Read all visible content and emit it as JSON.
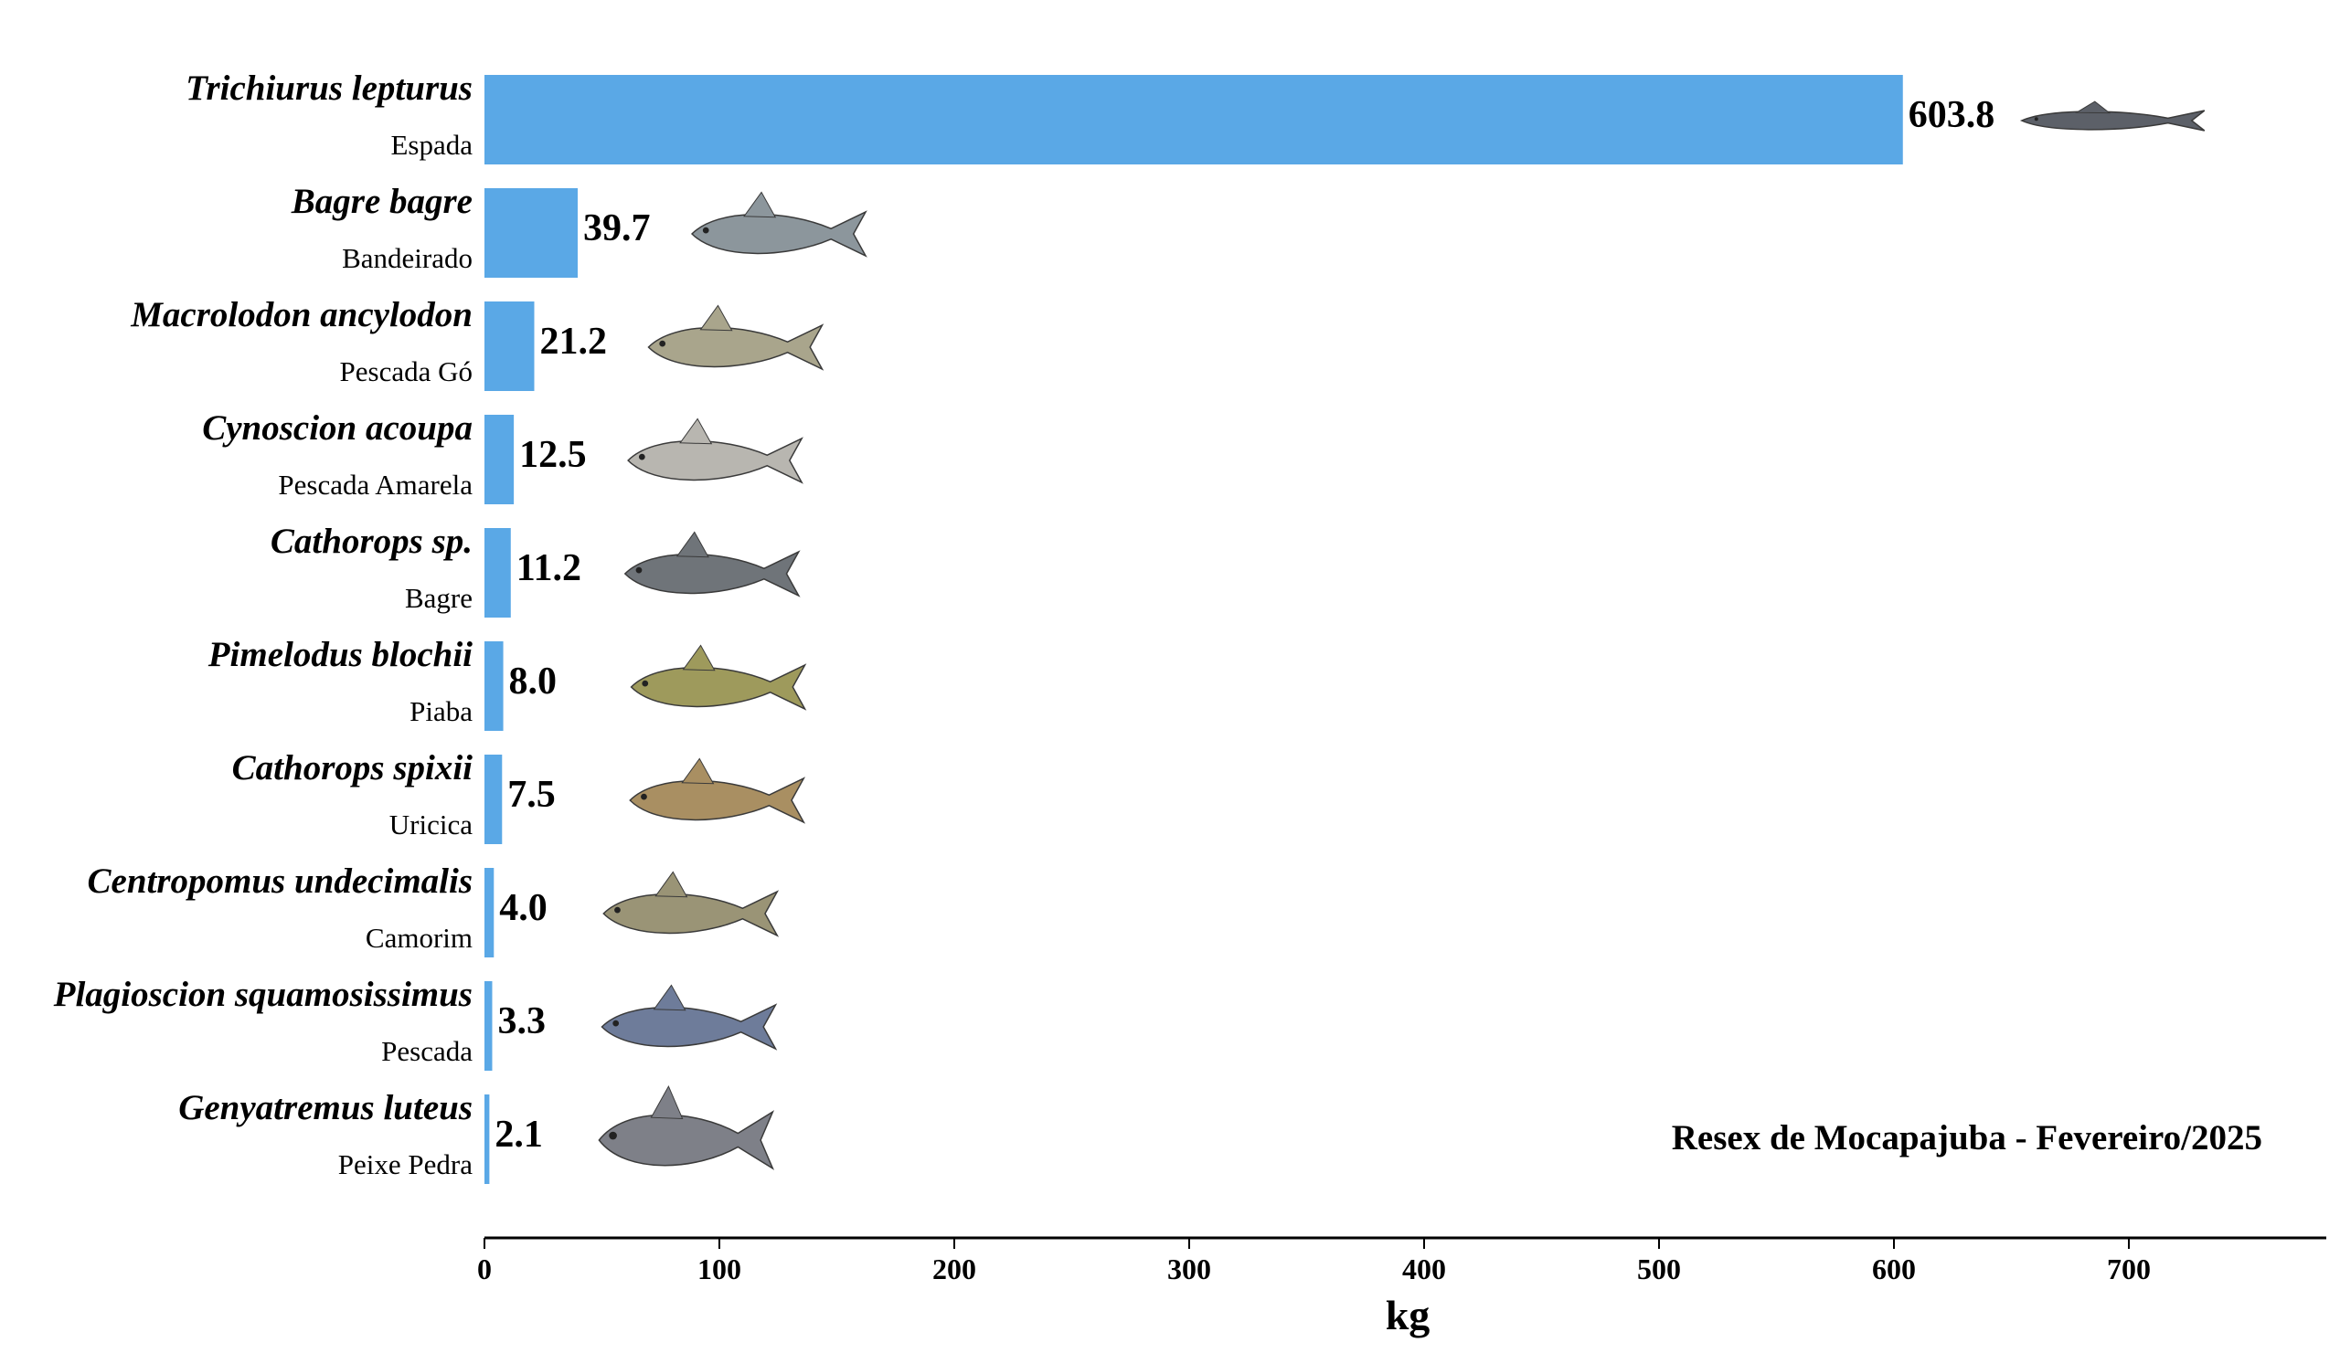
{
  "chart_data": {
    "type": "bar",
    "orientation": "horizontal",
    "bar_color": "#5aa8e6",
    "categories": [
      {
        "scientific": "Trichiurus lepturus",
        "common": "Espada",
        "icon": "ribbonfish-icon",
        "fish_color": "#5c6068"
      },
      {
        "scientific": "Bagre bagre",
        "common": "Bandeirado",
        "icon": "catfish-icon",
        "fish_color": "#8c969c"
      },
      {
        "scientific": "Macrolodon ancylodon",
        "common": "Pescada Gó",
        "icon": "weakfish-icon",
        "fish_color": "#a9a58c"
      },
      {
        "scientific": "Cynoscion acoupa",
        "common": "Pescada Amarela",
        "icon": "yellow-weakfish-icon",
        "fish_color": "#b8b6b0"
      },
      {
        "scientific": "Cathorops sp.",
        "common": "Bagre",
        "icon": "catfish-icon",
        "fish_color": "#6f7479"
      },
      {
        "scientific": "Pimelodus blochii",
        "common": "Piaba",
        "icon": "catfish-icon",
        "fish_color": "#9e9a5c"
      },
      {
        "scientific": "Cathorops spixii",
        "common": "Uricica",
        "icon": "catfish-icon",
        "fish_color": "#a98f62"
      },
      {
        "scientific": "Centropomus undecimalis",
        "common": "Camorim",
        "icon": "snook-icon",
        "fish_color": "#9a9476"
      },
      {
        "scientific": "Plagioscion squamosissimus",
        "common": "Pescada",
        "icon": "croaker-icon",
        "fish_color": "#6e7c9a"
      },
      {
        "scientific": "Genyatremus luteus",
        "common": "Peixe Pedra",
        "icon": "grunt-icon",
        "fish_color": "#7e8088"
      }
    ],
    "values": [
      603.8,
      39.7,
      21.2,
      12.5,
      11.2,
      8.0,
      7.5,
      4.0,
      3.3,
      2.1
    ],
    "value_labels": [
      "603.8",
      "39.7",
      "21.2",
      "12.5",
      "11.2",
      "8.0",
      "7.5",
      "4.0",
      "3.3",
      "2.1"
    ],
    "xlabel": "kg",
    "xlim": [
      0,
      785
    ],
    "xticks": [
      0,
      100,
      200,
      300,
      400,
      500,
      600,
      700
    ],
    "annotation": "Resex de Mocapajuba - Fevereiro/2025",
    "grid": false
  }
}
